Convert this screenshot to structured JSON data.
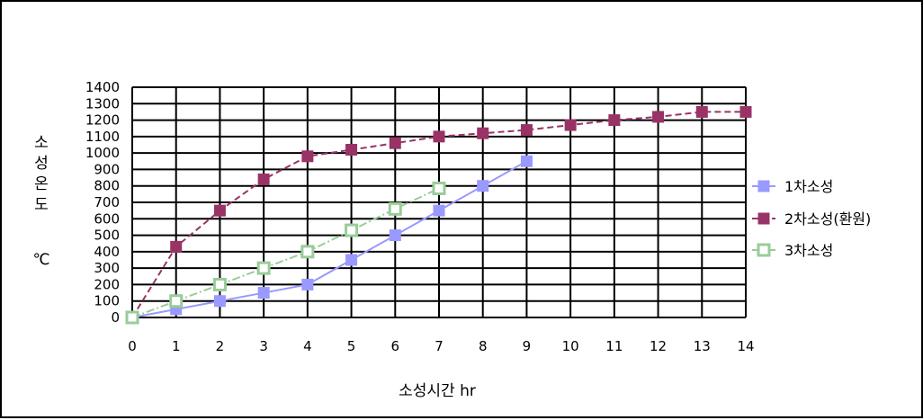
{
  "chart_data": {
    "type": "line",
    "title": "",
    "xlabel": "소성시간 hr",
    "ylabel_chars": [
      "소",
      "성",
      "온",
      "도"
    ],
    "ylabel_unit": "℃",
    "xlim": [
      0,
      14
    ],
    "ylim": [
      0,
      1400
    ],
    "x_ticks": [
      0,
      1,
      2,
      3,
      4,
      5,
      6,
      7,
      8,
      9,
      10,
      11,
      12,
      13,
      14
    ],
    "y_ticks": [
      0,
      100,
      200,
      300,
      400,
      500,
      600,
      700,
      800,
      900,
      1000,
      1100,
      1200,
      1300,
      1400
    ],
    "grid": true,
    "legend_position": "right",
    "series": [
      {
        "name": "1차소성",
        "color": "#9999ff",
        "line_style": "solid",
        "marker": "filled-square",
        "x": [
          0,
          1,
          2,
          3,
          4,
          5,
          6,
          7,
          8,
          9
        ],
        "values": [
          0,
          50,
          100,
          150,
          200,
          350,
          500,
          650,
          800,
          950
        ]
      },
      {
        "name": "2차소성(환원)",
        "color": "#993366",
        "line_style": "dashed",
        "marker": "filled-square",
        "x": [
          0,
          1,
          2,
          3,
          4,
          5,
          6,
          7,
          8,
          9,
          10,
          11,
          12,
          13,
          14
        ],
        "values": [
          0,
          430,
          650,
          840,
          980,
          1020,
          1060,
          1100,
          1120,
          1140,
          1170,
          1200,
          1220,
          1250,
          1250
        ]
      },
      {
        "name": "3차소성",
        "color": "#99cc99",
        "line_style": "dash-dot",
        "marker": "hollow-square",
        "x": [
          0,
          1,
          2,
          3,
          4,
          5,
          6,
          7
        ],
        "values": [
          0,
          100,
          200,
          300,
          400,
          530,
          660,
          785
        ]
      }
    ]
  }
}
